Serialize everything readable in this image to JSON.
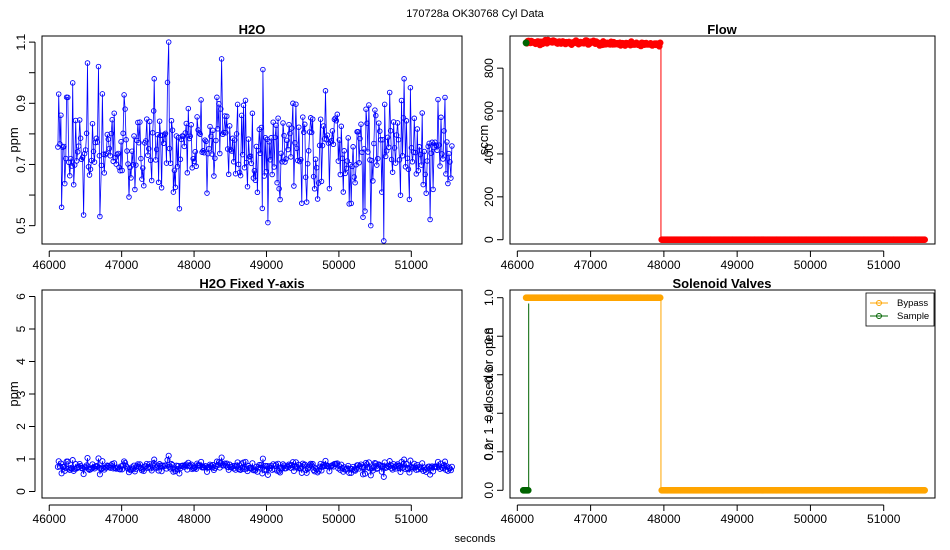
{
  "figure": {
    "suptitle": "170728a    OK30768   Cyl Data",
    "xlabel": "seconds"
  },
  "chart_data": [
    {
      "id": "h2o",
      "type": "line",
      "title": "H2O",
      "xlabel": "",
      "ylabel": "ppm",
      "xlim": [
        45900,
        51700
      ],
      "ylim": [
        0.44,
        1.12
      ],
      "xticks": [
        46000,
        47000,
        48000,
        49000,
        50000,
        51000
      ],
      "yticks": [
        0.5,
        0.6,
        0.7,
        0.8,
        0.9,
        1.0,
        1.1
      ],
      "ytick_labels": [
        "0.5",
        "",
        "0.7",
        "",
        "0.9",
        "",
        "1.1"
      ],
      "marker": "open-circle",
      "grid": false,
      "series": [
        {
          "color": "#0000ff",
          "x_start": 46120,
          "x_end": 51560,
          "n": 400,
          "y_mean": 0.76,
          "y_sd": 0.085,
          "highlights": [
            [
              47650,
              1.1
            ],
            [
              48380,
              1.045
            ],
            [
              48950,
              1.01
            ],
            [
              46680,
              1.02
            ],
            [
              50900,
              0.98
            ],
            [
              47450,
              0.98
            ],
            [
              50620,
              0.45
            ],
            [
              50440,
              0.5
            ],
            [
              49020,
              0.51
            ],
            [
              46700,
              0.53
            ],
            [
              51260,
              0.52
            ],
            [
              46170,
              0.56
            ],
            [
              46130,
              0.93
            ],
            [
              46240,
              0.92
            ]
          ]
        }
      ]
    },
    {
      "id": "flow",
      "type": "line",
      "title": "Flow",
      "xlabel": "",
      "ylabel": "sccm",
      "xlim": [
        45900,
        51700
      ],
      "ylim": [
        -20,
        950
      ],
      "xticks": [
        46000,
        47000,
        48000,
        49000,
        50000,
        51000
      ],
      "yticks": [
        0,
        200,
        400,
        600,
        800
      ],
      "ytick_labels": [
        "0",
        "200",
        "400",
        "600",
        "800"
      ],
      "marker": "filled-circle",
      "grid": false,
      "series": [
        {
          "color": "#ff0000",
          "segments": [
            {
              "x": [
                46130,
                47950
              ],
              "y": [
                925,
                910
              ],
              "noise": 5
            },
            {
              "x": [
                47970,
                51560
              ],
              "y": [
                0,
                0
              ],
              "noise": 0
            }
          ],
          "transition": {
            "x": 47960,
            "from": 910,
            "to": 0
          }
        }
      ],
      "initial_point": {
        "x": 46120,
        "y": 918,
        "color": "#006400"
      }
    },
    {
      "id": "h2o-fixed",
      "type": "line",
      "title": "H2O Fixed Y-axis",
      "xlabel": "",
      "ylabel": "ppm",
      "xlim": [
        45900,
        51700
      ],
      "ylim": [
        -0.2,
        6.2
      ],
      "xticks": [
        46000,
        47000,
        48000,
        49000,
        50000,
        51000
      ],
      "yticks": [
        0,
        1,
        2,
        3,
        4,
        5,
        6
      ],
      "ytick_labels": [
        "0",
        "1",
        "2",
        "3",
        "4",
        "5",
        "6"
      ],
      "marker": "open-circle",
      "grid": false,
      "series": [
        {
          "color": "#0000ff",
          "x_start": 46120,
          "x_end": 51560,
          "n": 400,
          "y_mean": 0.76,
          "y_sd": 0.085
        }
      ]
    },
    {
      "id": "solenoid",
      "type": "line",
      "title": "Solenoid Valves",
      "xlabel": "",
      "ylabel": "0 or 1 = closed or open",
      "xlim": [
        45900,
        51700
      ],
      "ylim": [
        -0.04,
        1.04
      ],
      "xticks": [
        46000,
        47000,
        48000,
        49000,
        50000,
        51000
      ],
      "yticks": [
        0.0,
        0.2,
        0.4,
        0.6,
        0.8,
        1.0
      ],
      "ytick_labels": [
        "0.0",
        "0.2",
        "0.4",
        "0.6",
        "0.8",
        "1.0"
      ],
      "marker": "filled-circle",
      "grid": false,
      "legend": {
        "position": "top-right",
        "entries": [
          {
            "label": "Bypass",
            "color": "#ffa500"
          },
          {
            "label": "Sample",
            "color": "#006400"
          }
        ]
      },
      "series": [
        {
          "name": "Bypass",
          "color": "#ffa500",
          "segments": [
            {
              "x": [
                46120,
                47950
              ],
              "y": [
                1,
                1
              ]
            },
            {
              "x": [
                47970,
                51560
              ],
              "y": [
                0,
                0
              ]
            }
          ],
          "transition": {
            "x": 47960,
            "from": 1,
            "to": 0
          }
        },
        {
          "name": "Sample",
          "color": "#006400",
          "segments": [
            {
              "x": [
                46080,
                46150
              ],
              "y": [
                0,
                0
              ]
            }
          ],
          "transition": {
            "x": 46155,
            "from": 0,
            "to": 0.97
          }
        }
      ]
    }
  ]
}
